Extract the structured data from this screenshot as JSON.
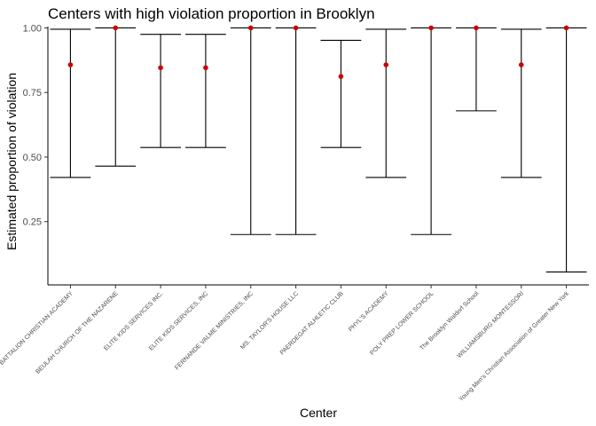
{
  "chart_data": {
    "type": "errorbar",
    "title": "Centers with high violation proportion in Brooklyn",
    "xlabel": "Center",
    "ylabel": "Estimated proportion of violation",
    "ylim": [
      0.005,
      1.005
    ],
    "yticks": [
      "0.25",
      "0.50",
      "0.75",
      "1.00"
    ],
    "ytick_values": [
      0.25,
      0.5,
      0.75,
      1.0
    ],
    "grid": false,
    "point_color": "#cc0000",
    "categories": [
      "BATTALION CHRISTIAN ACADEMY",
      "BEULAH CHURCH OF THE NAZARENE",
      "ELITE KIDS SERVICES INC.",
      "ELITE KIDS SERVICES, INC",
      "FERNANDE VALME MINISTRIES, INC",
      "MS. TAYLOR'S HOUSE LLC",
      "PAERDEGAT ALHLETIC CLUB",
      "PHYL'S ACADEMY",
      "POLY PREP LOWER SCHOOL",
      "The Brooklyn Waldorf School",
      "WILLIAMSBURG MONTESSORI",
      "Young Men's Christian Association of Greater New York"
    ],
    "values": [
      0.857,
      1.0,
      0.846,
      0.846,
      1.0,
      1.0,
      0.812,
      0.857,
      1.0,
      1.0,
      0.857,
      1.0
    ],
    "lower": [
      0.421,
      0.465,
      0.537,
      0.537,
      0.2,
      0.2,
      0.537,
      0.421,
      0.2,
      0.679,
      0.421,
      0.055
    ],
    "upper": [
      0.995,
      1.0,
      0.975,
      0.975,
      1.0,
      1.0,
      0.952,
      0.995,
      1.0,
      1.0,
      0.995,
      1.0
    ]
  }
}
